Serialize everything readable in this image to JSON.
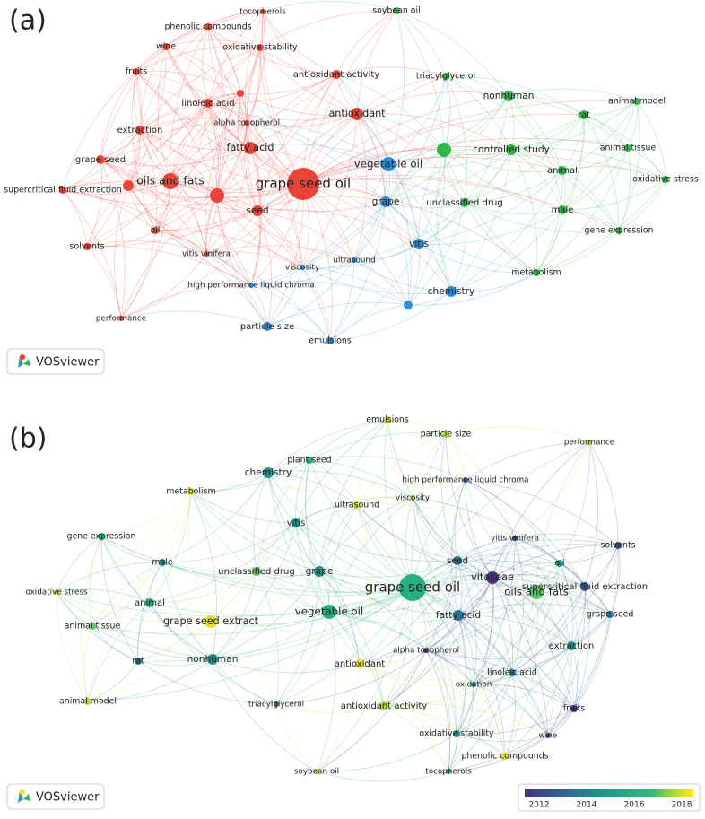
{
  "panels": [
    {
      "label": "(a)",
      "logo": "VOSviewer",
      "nodes": [
        {
          "label": "grape seed oil"
        },
        {
          "label": "oils and fats"
        },
        {
          "label": "fatty acid"
        },
        {
          "label": "seed"
        },
        {
          "label": "antioxidant"
        },
        {
          "label": "antioxidant activity"
        },
        {
          "label": "linoleic acid"
        },
        {
          "label": "extraction"
        },
        {
          "label": "grape seed"
        },
        {
          "label": "supercritical fluid extraction"
        },
        {
          "label": "oil"
        },
        {
          "label": "solvents"
        },
        {
          "label": "vitis vinifera"
        },
        {
          "label": "performance"
        },
        {
          "label": "fruits"
        },
        {
          "label": "wine"
        },
        {
          "label": "phenolic compounds"
        },
        {
          "label": "tocopherols"
        },
        {
          "label": "oxidative stability"
        },
        {
          "label": "alpha tocopherol"
        },
        {
          "label": "soybean oil"
        },
        {
          "label": "triacylglycerol"
        },
        {
          "label": "nonhuman"
        },
        {
          "label": "animal model"
        },
        {
          "label": "rat"
        },
        {
          "label": "controlled study"
        },
        {
          "label": "animal tissue"
        },
        {
          "label": "animal"
        },
        {
          "label": "oxidative stress"
        },
        {
          "label": "male"
        },
        {
          "label": "gene expression"
        },
        {
          "label": "metabolism"
        },
        {
          "label": "unclassified drug"
        },
        {
          "label": "vegetable oil"
        },
        {
          "label": "grape"
        },
        {
          "label": "vitis"
        },
        {
          "label": "chemistry"
        },
        {
          "label": "ultrasound"
        },
        {
          "label": "viscosity"
        },
        {
          "label": "high performance liquid chroma"
        },
        {
          "label": "particle size"
        },
        {
          "label": "emulsions"
        }
      ]
    },
    {
      "label": "(b)",
      "logo": "VOSviewer",
      "nodes": [
        {
          "label": "grape seed oil"
        },
        {
          "label": "oils and fats"
        },
        {
          "label": "vitaceae"
        },
        {
          "label": "seed"
        },
        {
          "label": "fatty acid"
        },
        {
          "label": "grape"
        },
        {
          "label": "vegetable oil"
        },
        {
          "label": "unclassified drug"
        },
        {
          "label": "grape seed extract"
        },
        {
          "label": "vitis"
        },
        {
          "label": "chemistry"
        },
        {
          "label": "plant seed"
        },
        {
          "label": "metabolism"
        },
        {
          "label": "ultrasound"
        },
        {
          "label": "viscosity"
        },
        {
          "label": "emulsions"
        },
        {
          "label": "particle size"
        },
        {
          "label": "high performance liquid chroma"
        },
        {
          "label": "performance"
        },
        {
          "label": "vitis vinifera"
        },
        {
          "label": "solvents"
        },
        {
          "label": "oil"
        },
        {
          "label": "supercritical fluid extraction"
        },
        {
          "label": "grape seed"
        },
        {
          "label": "extraction"
        },
        {
          "label": "linoleic acid"
        },
        {
          "label": "alpha tocopherol"
        },
        {
          "label": "oxidation"
        },
        {
          "label": "antioxidant"
        },
        {
          "label": "antioxidant activity"
        },
        {
          "label": "fruits"
        },
        {
          "label": "wine"
        },
        {
          "label": "oxidative stability"
        },
        {
          "label": "phenolic compounds"
        },
        {
          "label": "tocopherols"
        },
        {
          "label": "soybean oil"
        },
        {
          "label": "triacylglycerol"
        },
        {
          "label": "nonhuman"
        },
        {
          "label": "rat"
        },
        {
          "label": "animal model"
        },
        {
          "label": "animal tissue"
        },
        {
          "label": "oxidative stress"
        },
        {
          "label": "animal"
        },
        {
          "label": "male"
        },
        {
          "label": "gene expression"
        }
      ],
      "colorbar": {
        "ticks": [
          "2012",
          "2014",
          "2016",
          "2018"
        ]
      }
    }
  ]
}
